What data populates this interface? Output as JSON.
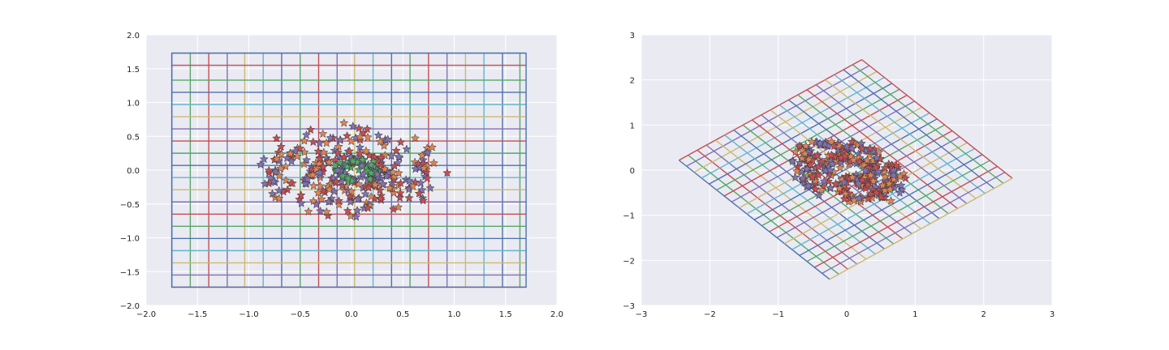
{
  "style": {
    "axes_bg": "#eaeaf2",
    "grid_color": "#ffffff",
    "palette": [
      "#4c72b0",
      "#55a868",
      "#c44e52",
      "#8172b2",
      "#ccb974",
      "#64b5cd"
    ],
    "star_colors": [
      "#c44e52",
      "#8172b2",
      "#dd8452",
      "#55a868"
    ],
    "star_edge": "#333333"
  },
  "chart_data": [
    {
      "type": "scatter",
      "title": "",
      "xlabel": "",
      "ylabel": "",
      "xlim": [
        -2.0,
        2.0
      ],
      "ylim": [
        -2.0,
        2.0
      ],
      "xticks": [
        "−2.0",
        "−1.5",
        "−1.0",
        "−0.5",
        "0.0",
        "0.5",
        "1.0",
        "1.5",
        "2.0"
      ],
      "yticks": [
        "2.0",
        "1.5",
        "1.0",
        "0.5",
        "0.0",
        "−0.5",
        "−1.0",
        "−1.5",
        "−2.0"
      ],
      "grid": true,
      "mesh": {
        "x_lines": [
          -1.75,
          -1.57,
          -1.39,
          -1.21,
          -1.04,
          -0.86,
          -0.68,
          -0.5,
          -0.32,
          -0.14,
          0.03,
          0.21,
          0.39,
          0.57,
          0.75,
          0.93,
          1.11,
          1.29,
          1.47,
          1.64
        ],
        "y_lines": [
          -1.73,
          -1.55,
          -1.37,
          -1.19,
          -1.01,
          -0.83,
          -0.65,
          -0.47,
          -0.29,
          -0.11,
          0.07,
          0.25,
          0.43,
          0.61,
          0.79,
          0.97,
          1.15,
          1.33,
          1.55,
          1.73
        ],
        "x_range": [
          -1.75,
          1.7
        ],
        "y_range": [
          -1.73,
          1.73
        ]
      },
      "series": [
        {
          "marker": "star",
          "shape": "outer ring",
          "center": [
            0.0,
            0.0
          ],
          "radii": [
            0.72,
            0.52
          ],
          "jitter": 0.1,
          "count": 160
        },
        {
          "marker": "star",
          "shape": "inner ring",
          "center": [
            0.0,
            -0.02
          ],
          "radii": [
            0.36,
            0.24
          ],
          "jitter": 0.06,
          "count": 120
        },
        {
          "marker": "star",
          "shape": "core cluster",
          "center": [
            0.05,
            0.0
          ],
          "radii": [
            0.16,
            0.12
          ],
          "jitter": 0.04,
          "count": 80
        }
      ]
    },
    {
      "type": "scatter",
      "title": "",
      "xlabel": "",
      "ylabel": "",
      "xlim": [
        -3,
        3
      ],
      "ylim": [
        -3,
        3
      ],
      "xticks": [
        "−3",
        "−2",
        "−1",
        "0",
        "1",
        "2",
        "3"
      ],
      "yticks": [
        "3",
        "2",
        "1",
        "0",
        "−1",
        "−2",
        "−3"
      ],
      "grid": true,
      "mesh": {
        "corners": {
          "top": [
            0.22,
            2.45
          ],
          "right": [
            2.42,
            -0.18
          ],
          "bottom": [
            -0.25,
            -2.42
          ],
          "left": [
            -2.45,
            0.22
          ]
        },
        "lines_per_direction": 20
      },
      "series": [
        {
          "marker": "star",
          "shape": "transformed cloud",
          "center": [
            0.02,
            0.02
          ],
          "radii": [
            0.72,
            0.5
          ],
          "rotation_deg": -30,
          "jitter": 0.1,
          "count": 200
        },
        {
          "marker": "star",
          "shape": "transformed core",
          "center": [
            0.05,
            0.02
          ],
          "radii": [
            0.35,
            0.22
          ],
          "rotation_deg": -30,
          "jitter": 0.06,
          "count": 120
        }
      ]
    }
  ]
}
